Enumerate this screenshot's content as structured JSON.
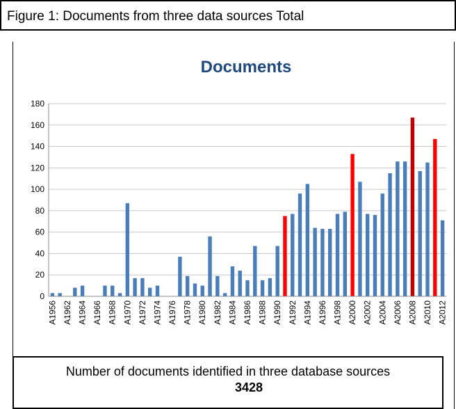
{
  "caption": "Figure 1: Documents from three data sources Total",
  "chart_data": {
    "type": "bar",
    "title": "Documents",
    "categories": [
      "A1956",
      null,
      "A1962",
      null,
      "A1964",
      null,
      "A1966",
      null,
      "A1968",
      null,
      "A1970",
      null,
      "A1972",
      null,
      "A1974",
      null,
      "A1976",
      null,
      "A1978",
      null,
      "A1980",
      null,
      "A1982",
      null,
      "A1984",
      null,
      "A1986",
      null,
      "A1988",
      null,
      "A1990",
      null,
      "A1992",
      null,
      "A1994",
      null,
      "A1996",
      null,
      "A1998",
      null,
      "A2000",
      null,
      "A2002",
      null,
      "A2004",
      null,
      "A2006",
      null,
      "A2008",
      null,
      "A2010",
      null,
      "A2012"
    ],
    "values": [
      3,
      3,
      0,
      8,
      10,
      0,
      0,
      10,
      10,
      3,
      87,
      17,
      17,
      8,
      10,
      0,
      0,
      37,
      19,
      12,
      10,
      56,
      19,
      3,
      28,
      24,
      15,
      47,
      15,
      17,
      47,
      75,
      77,
      96,
      105,
      64,
      63,
      63,
      77,
      79,
      133,
      107,
      77,
      76,
      96,
      115,
      126,
      126,
      167,
      117,
      125,
      147,
      71
    ],
    "colors": [
      "#4a7ebb",
      "#4a7ebb",
      "#4a7ebb",
      "#4a7ebb",
      "#4a7ebb",
      "#4a7ebb",
      "#4a7ebb",
      "#4a7ebb",
      "#4a7ebb",
      "#4a7ebb",
      "#4a7ebb",
      "#4a7ebb",
      "#4a7ebb",
      "#4a7ebb",
      "#4a7ebb",
      "#4a7ebb",
      "#4a7ebb",
      "#4a7ebb",
      "#4a7ebb",
      "#4a7ebb",
      "#4a7ebb",
      "#4a7ebb",
      "#4a7ebb",
      "#4a7ebb",
      "#4a7ebb",
      "#4a7ebb",
      "#4a7ebb",
      "#4a7ebb",
      "#4a7ebb",
      "#4a7ebb",
      "#4a7ebb",
      "#ff0000",
      "#4a7ebb",
      "#4a7ebb",
      "#4a7ebb",
      "#4a7ebb",
      "#4a7ebb",
      "#4a7ebb",
      "#4a7ebb",
      "#4a7ebb",
      "#ff0000",
      "#4a7ebb",
      "#4a7ebb",
      "#4a7ebb",
      "#4a7ebb",
      "#4a7ebb",
      "#4a7ebb",
      "#4a7ebb",
      "#c00000",
      "#4a7ebb",
      "#4a7ebb",
      "#ff0000",
      "#4a7ebb"
    ],
    "ylim": [
      0,
      180
    ],
    "yticks": [
      0,
      20,
      40,
      60,
      80,
      100,
      120,
      140,
      160,
      180
    ],
    "grid": true
  },
  "note": {
    "text": "Number of documents identified in three database sources",
    "total": "3428"
  }
}
